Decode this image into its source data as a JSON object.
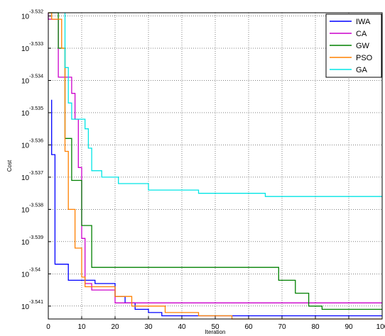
{
  "chart_data": {
    "type": "line",
    "xlabel": "Iteration",
    "ylabel": "Cost",
    "xlim": [
      0,
      100
    ],
    "ylim": [
      -3.5414,
      -3.5319
    ],
    "y_scale": "log",
    "grid": true,
    "legend_position": "top-right",
    "x_ticks": [
      "0",
      "10",
      "20",
      "30",
      "40",
      "50",
      "60",
      "70",
      "80",
      "90",
      "100"
    ],
    "y_ticks": [
      {
        "base": "10",
        "exp": "-3.532",
        "value": -3.532
      },
      {
        "base": "10",
        "exp": "-3.533",
        "value": -3.533
      },
      {
        "base": "10",
        "exp": "-3.534",
        "value": -3.534
      },
      {
        "base": "10",
        "exp": "-3.535",
        "value": -3.535
      },
      {
        "base": "10",
        "exp": "-3.536",
        "value": -3.536
      },
      {
        "base": "10",
        "exp": "-3.537",
        "value": -3.537
      },
      {
        "base": "10",
        "exp": "-3.538",
        "value": -3.538
      },
      {
        "base": "10",
        "exp": "-3.539",
        "value": -3.539
      },
      {
        "base": "10",
        "exp": "-3.54",
        "value": -3.54
      },
      {
        "base": "10",
        "exp": "-3.541",
        "value": -3.541
      }
    ],
    "series": [
      {
        "name": "IWA",
        "color": "#0000ff",
        "x": [
          1,
          1,
          2,
          2,
          6,
          6,
          14,
          14,
          20,
          20,
          23,
          23,
          26,
          26,
          30,
          30,
          34,
          34,
          100
        ],
        "y": [
          -3.5346,
          -3.5363,
          -3.5363,
          -3.5397,
          -3.5397,
          -3.5402,
          -3.5402,
          -3.5403,
          -3.5403,
          -3.5407,
          -3.5407,
          -3.5409,
          -3.5409,
          -3.5411,
          -3.5411,
          -3.5412,
          -3.5412,
          -3.5413,
          -3.5413
        ]
      },
      {
        "name": "CA",
        "color": "#cc00cc",
        "x": [
          0,
          0,
          3,
          3,
          7,
          7,
          8,
          8,
          9,
          9,
          10,
          10,
          11,
          11,
          13,
          13,
          20,
          20,
          100
        ],
        "y": [
          -3.5319,
          -3.5321,
          -3.5321,
          -3.5339,
          -3.5339,
          -3.5344,
          -3.5344,
          -3.5352,
          -3.5352,
          -3.5367,
          -3.5367,
          -3.5389,
          -3.5389,
          -3.5403,
          -3.5403,
          -3.5405,
          -3.5405,
          -3.5409,
          -3.5409
        ]
      },
      {
        "name": "GW",
        "color": "#008000",
        "x": [
          0,
          1,
          1,
          3,
          3,
          5,
          5,
          7,
          7,
          10,
          10,
          13,
          13,
          69,
          69,
          74,
          74,
          78,
          78,
          82,
          82,
          100
        ],
        "y": [
          -3.5319,
          -3.5319,
          -3.5319,
          -3.5319,
          -3.533,
          -3.533,
          -3.5358,
          -3.5358,
          -3.5371,
          -3.5371,
          -3.5385,
          -3.5385,
          -3.5398,
          -3.5398,
          -3.5402,
          -3.5402,
          -3.5406,
          -3.5406,
          -3.541,
          -3.541,
          -3.5411,
          -3.5411
        ]
      },
      {
        "name": "PSO",
        "color": "#ff8000",
        "x": [
          0,
          1,
          1,
          4,
          4,
          5,
          5,
          6,
          6,
          8,
          8,
          10,
          10,
          11,
          11,
          20,
          20,
          25,
          25,
          35,
          35,
          45,
          45,
          55,
          55,
          100
        ],
        "y": [
          -3.5319,
          -3.5319,
          -3.5321,
          -3.5321,
          -3.533,
          -3.533,
          -3.5362,
          -3.5362,
          -3.538,
          -3.538,
          -3.5392,
          -3.5392,
          -3.5401,
          -3.5401,
          -3.5404,
          -3.5404,
          -3.5407,
          -3.5407,
          -3.541,
          -3.541,
          -3.5412,
          -3.5412,
          -3.5413,
          -3.5413,
          -3.5414,
          -3.5414
        ]
      },
      {
        "name": "GA",
        "color": "#00e5e5",
        "x": [
          5,
          5,
          6,
          6,
          7,
          7,
          11,
          11,
          12,
          12,
          13,
          13,
          16,
          16,
          21,
          21,
          30,
          30,
          45,
          45,
          65,
          65,
          100
        ],
        "y": [
          -3.5319,
          -3.5336,
          -3.5336,
          -3.5347,
          -3.5347,
          -3.5352,
          -3.5352,
          -3.5355,
          -3.5355,
          -3.5361,
          -3.5361,
          -3.5368,
          -3.5368,
          -3.537,
          -3.537,
          -3.5372,
          -3.5372,
          -3.5374,
          -3.5374,
          -3.5375,
          -3.5375,
          -3.5376,
          -3.5376
        ]
      }
    ]
  }
}
